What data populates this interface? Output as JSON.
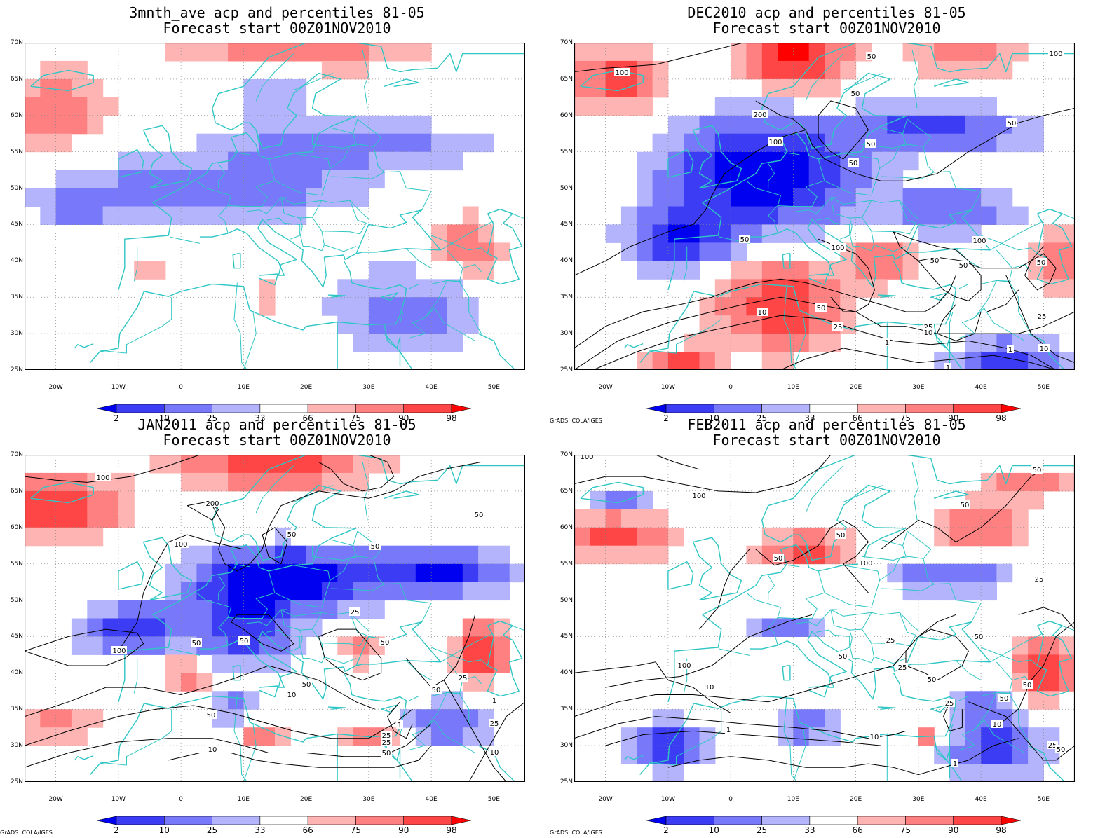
{
  "colors": {
    "ocean_bg": "#ffffff",
    "coast": "#2ec6c4",
    "contour": "#000000",
    "grid": "#888888",
    "palette": [
      "#0000f0",
      "#3c3cf5",
      "#7878fa",
      "#b4b4fc",
      "#ffffff",
      "#ffb4b4",
      "#ff8080",
      "#ff4646",
      "#ff0000"
    ]
  },
  "x_ticks": [
    "20W",
    "10W",
    "0",
    "10E",
    "20E",
    "30E",
    "40E",
    "50E"
  ],
  "y_ticks": [
    "70N",
    "65N",
    "60N",
    "55N",
    "50N",
    "45N",
    "40N",
    "35N",
    "30N",
    "25N"
  ],
  "colorbar_labels": [
    "2",
    "10",
    "25",
    "33",
    "66",
    "75",
    "90",
    "98"
  ],
  "credit": "GrADS: COLA/IGES",
  "panels": [
    {
      "title_line1": "3mnth_ave acp and percentiles 81-05",
      "title_line2": "Forecast start 00Z01NOV2010",
      "show_credit": false,
      "contour_labels": []
    },
    {
      "title_line1": "DEC2010 acp and percentiles 81-05",
      "title_line2": "Forecast start 00Z01NOV2010",
      "show_credit": true,
      "contour_labels": [
        "100",
        "200",
        "100",
        "50",
        "50",
        "50",
        "50",
        "50",
        "100",
        "100",
        "50",
        "50",
        "100",
        "50",
        "10",
        "50",
        "25",
        "25",
        "10",
        "1",
        "50",
        "25",
        "10",
        "1",
        "1"
      ]
    },
    {
      "title_line1": "JAN2011 acp and percentiles 81-05",
      "title_line2": "Forecast start 00Z01NOV2010",
      "show_credit": true,
      "contour_labels": [
        "100",
        "200",
        "50",
        "100",
        "50",
        "50",
        "25",
        "100",
        "50",
        "50",
        "50",
        "50",
        "25",
        "50",
        "50",
        "10",
        "25",
        "25",
        "10",
        "1",
        "1",
        "25",
        "10",
        "50"
      ]
    },
    {
      "title_line1": "FEB2011 acp and percentiles 81-05",
      "title_line2": "Forecast start 00Z01NOV2010",
      "show_credit": true,
      "contour_labels": [
        "100",
        "100",
        "50",
        "50",
        "100",
        "50",
        "50",
        "25",
        "100",
        "50",
        "25",
        "50",
        "50",
        "10",
        "1",
        "25",
        "10",
        "50",
        "25",
        "10",
        "1",
        "50",
        "25",
        "50"
      ]
    }
  ]
}
